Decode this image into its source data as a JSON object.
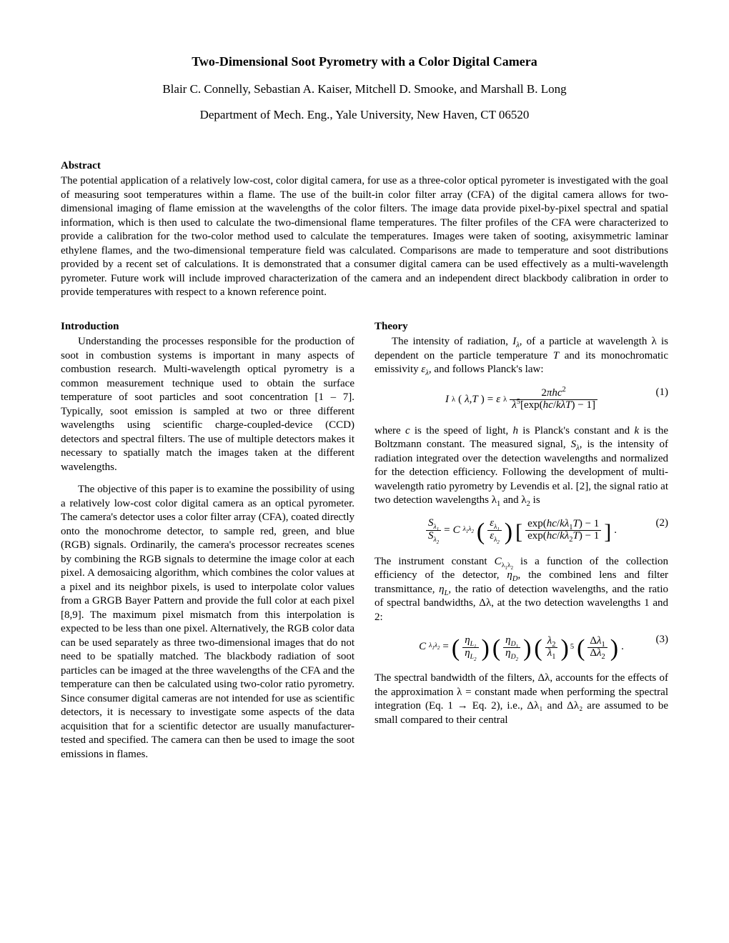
{
  "title": "Two-Dimensional Soot Pyrometry with a Color Digital Camera",
  "authors": "Blair C. Connelly, Sebastian A. Kaiser, Mitchell D. Smooke, and Marshall B. Long",
  "affiliation": "Department of Mech. Eng., Yale University, New Haven, CT 06520",
  "abstract_label": "Abstract",
  "abstract_body": "The potential application of a relatively low-cost, color digital camera, for use as a three-color optical pyrometer is investigated with the goal of measuring soot temperatures within a flame. The use of the built-in color filter array (CFA) of the digital camera allows for two-dimensional imaging of flame emission at the wavelengths of the color filters. The image data provide pixel-by-pixel spectral and spatial information, which is then used to calculate the two-dimensional flame temperatures. The filter profiles of the CFA were characterized to provide a calibration for the two-color method used to calculate the temperatures. Images were taken of sooting, axisymmetric laminar ethylene flames, and the two-dimensional temperature field was calculated. Comparisons are made to temperature and soot distributions provided by a recent set of calculations. It is demonstrated that a consumer digital camera can be used effectively as a multi-wavelength pyrometer. Future work will include improved characterization of the camera and an independent direct blackbody calibration in order to provide temperatures with respect to a known reference point.",
  "left": {
    "section": "Introduction",
    "p1": "Understanding the processes responsible for the production of soot in combustion systems is important in many aspects of combustion research. Multi-wavelength optical pyrometry is a common measurement technique used to obtain the surface temperature of soot particles and soot concentration [1 – 7]. Typically, soot emission is sampled at two or three different wavelengths using scientific charge-coupled-device (CCD) detectors and spectral filters. The use of multiple detectors makes it necessary to spatially match the images taken at the different wavelengths.",
    "p2": "The objective of this paper is to examine the possibility of using a relatively low-cost color digital camera as an optical pyrometer. The camera's detector uses a color filter array (CFA), coated directly onto the monochrome detector, to sample red, green, and blue (RGB) signals. Ordinarily, the camera's processor recreates scenes by combining the RGB signals to determine the image color at each pixel. A demosaicing algorithm, which combines the color values at a pixel and its neighbor pixels, is used to interpolate color values from a GRGB Bayer Pattern and provide the full color at each pixel [8,9]. The maximum pixel mismatch from this interpolation is expected to be less than one pixel. Alternatively, the RGB color data can be used separately as three two-dimensional images that do not need to be spatially matched. The blackbody radiation of soot particles can be imaged at the three wavelengths of the CFA and the temperature can then be calculated using two-color ratio pyrometry. Since consumer digital cameras are not intended for use as scientific detectors, it is necessary to investigate some aspects of the data acquisition that for a scientific detector are usually manufacturer-tested and specified. The camera can then be used to image the soot emissions in flames."
  },
  "right": {
    "section": "Theory",
    "p1a": "The intensity of radiation, ",
    "p1b": ", of a particle at wavelength λ is dependent on the particle temperature ",
    "p1c": " and its monochromatic emissivity ",
    "p1d": ", and follows Planck's law:",
    "eq1_num": "(1)",
    "p2a": "where ",
    "p2b": " is the speed of light, ",
    "p2c": " is Planck's constant and ",
    "p2d": " is the Boltzmann constant. The measured signal, ",
    "p2e": ", is the intensity of radiation integrated over the detection wavelengths and normalized for the detection efficiency. Following the development of multi-wavelength ratio pyrometry by Levendis et al. [2], the signal ratio at two detection wavelengths λ",
    "p2f": " and λ",
    "p2g": " is",
    "eq2_num": "(2)",
    "p3a": "The instrument constant ",
    "p3b": " is a function of the collection efficiency of the detector, ",
    "p3c": ", the combined lens and filter transmittance, ",
    "p3d": ", the ratio of detection wavelengths, and the ratio of spectral bandwidths, Δλ, at the two detection wavelengths 1 and 2:",
    "eq3_num": "(3)",
    "p4": "The spectral bandwidth of the filters, Δλ, accounts for the effects of the approximation λ = constant made when performing the spectral integration (Eq. 1 → Eq. 2), i.e., Δλ₁ and Δλ₂ are assumed to be small compared to their central"
  }
}
